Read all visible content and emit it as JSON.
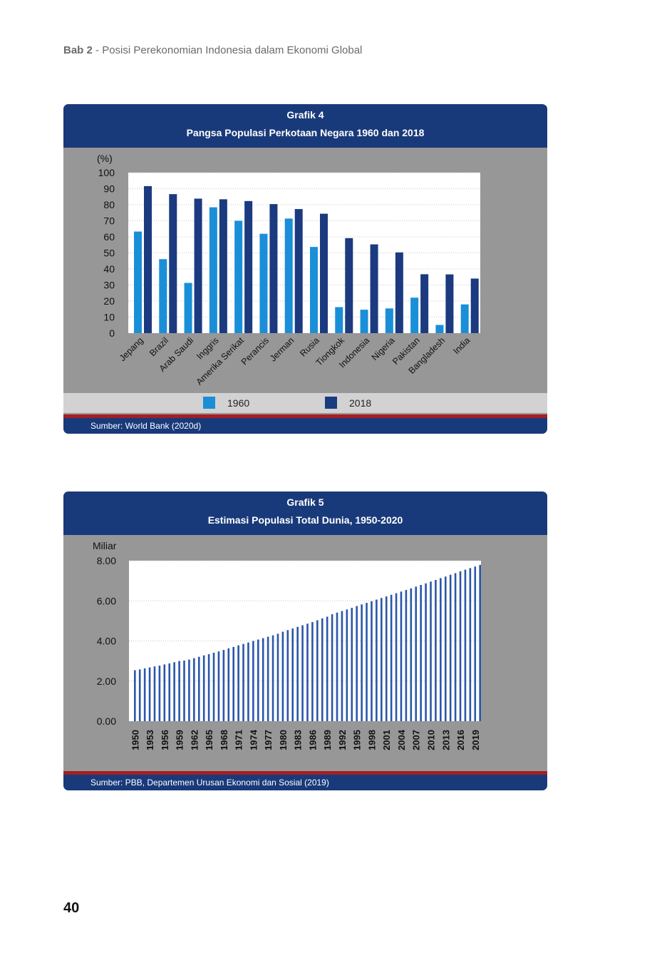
{
  "page": {
    "chapter_label": "Bab 2",
    "chapter_title": " - Posisi Perekonomian Indonesia dalam Ekonomi Global",
    "page_number": "40"
  },
  "chart_data": [
    {
      "type": "bar",
      "title": "Grafik 4",
      "subtitle": "Pangsa Populasi Perkotaan Negara 1960 dan 2018",
      "ylabel": "(%)",
      "ylim": [
        0,
        100
      ],
      "yticks": [
        0,
        10,
        20,
        30,
        40,
        50,
        60,
        70,
        80,
        90,
        100
      ],
      "grid": true,
      "legend_position": "bottom",
      "categories": [
        "Jepang",
        "Brazil",
        "Arab Saudi",
        "Inggris",
        "Amerika Serikat",
        "Perancis",
        "Jerman",
        "Rusia",
        "Tiongkok",
        "Indonesia",
        "Nigeria",
        "Pakistan",
        "Bangladesh",
        "India"
      ],
      "series": [
        {
          "name": "1960",
          "color": "#1a8fd8",
          "values": [
            63.3,
            46.1,
            31.3,
            78.4,
            70.0,
            61.9,
            71.4,
            53.7,
            16.2,
            14.6,
            15.4,
            22.1,
            5.1,
            17.9
          ]
        },
        {
          "name": "2018",
          "color": "#1b3a7f",
          "values": [
            91.6,
            86.6,
            83.8,
            83.4,
            82.3,
            80.4,
            77.3,
            74.4,
            59.2,
            55.3,
            50.3,
            36.7,
            36.6,
            34.0
          ]
        }
      ],
      "source": "Sumber: World Bank (2020d)"
    },
    {
      "type": "bar",
      "title": "Grafik 5",
      "subtitle": "Estimasi Populasi Total Dunia, 1950-2020",
      "ylabel": "Miliar",
      "ylim": [
        0,
        8
      ],
      "yticks": [
        "0.00",
        "2.00",
        "4.00",
        "6.00",
        "8.00"
      ],
      "grid": true,
      "color": "#2a56a8",
      "x_start": 1950,
      "x_end": 2020,
      "x_tick_labels": [
        "1950",
        "1953",
        "1956",
        "1959",
        "1962",
        "1965",
        "1968",
        "1971",
        "1974",
        "1977",
        "1980",
        "1983",
        "1986",
        "1989",
        "1992",
        "1995",
        "1998",
        "2001",
        "2004",
        "2007",
        "2010",
        "2013",
        "2016",
        "2019"
      ],
      "values": [
        2.54,
        2.58,
        2.63,
        2.68,
        2.73,
        2.77,
        2.83,
        2.88,
        2.94,
        3.0,
        3.02,
        3.07,
        3.14,
        3.21,
        3.28,
        3.34,
        3.41,
        3.48,
        3.55,
        3.63,
        3.7,
        3.78,
        3.85,
        3.92,
        4.0,
        4.07,
        4.14,
        4.21,
        4.28,
        4.36,
        4.46,
        4.54,
        4.62,
        4.7,
        4.78,
        4.86,
        4.94,
        5.03,
        5.12,
        5.21,
        5.33,
        5.41,
        5.49,
        5.57,
        5.65,
        5.74,
        5.82,
        5.9,
        5.98,
        6.06,
        6.14,
        6.22,
        6.3,
        6.38,
        6.46,
        6.54,
        6.62,
        6.71,
        6.79,
        6.87,
        6.96,
        7.04,
        7.13,
        7.21,
        7.3,
        7.38,
        7.47,
        7.55,
        7.63,
        7.71,
        7.79
      ],
      "source": "Sumber: PBB, Departemen Urusan Ekonomi dan Sosial (2019)"
    }
  ]
}
